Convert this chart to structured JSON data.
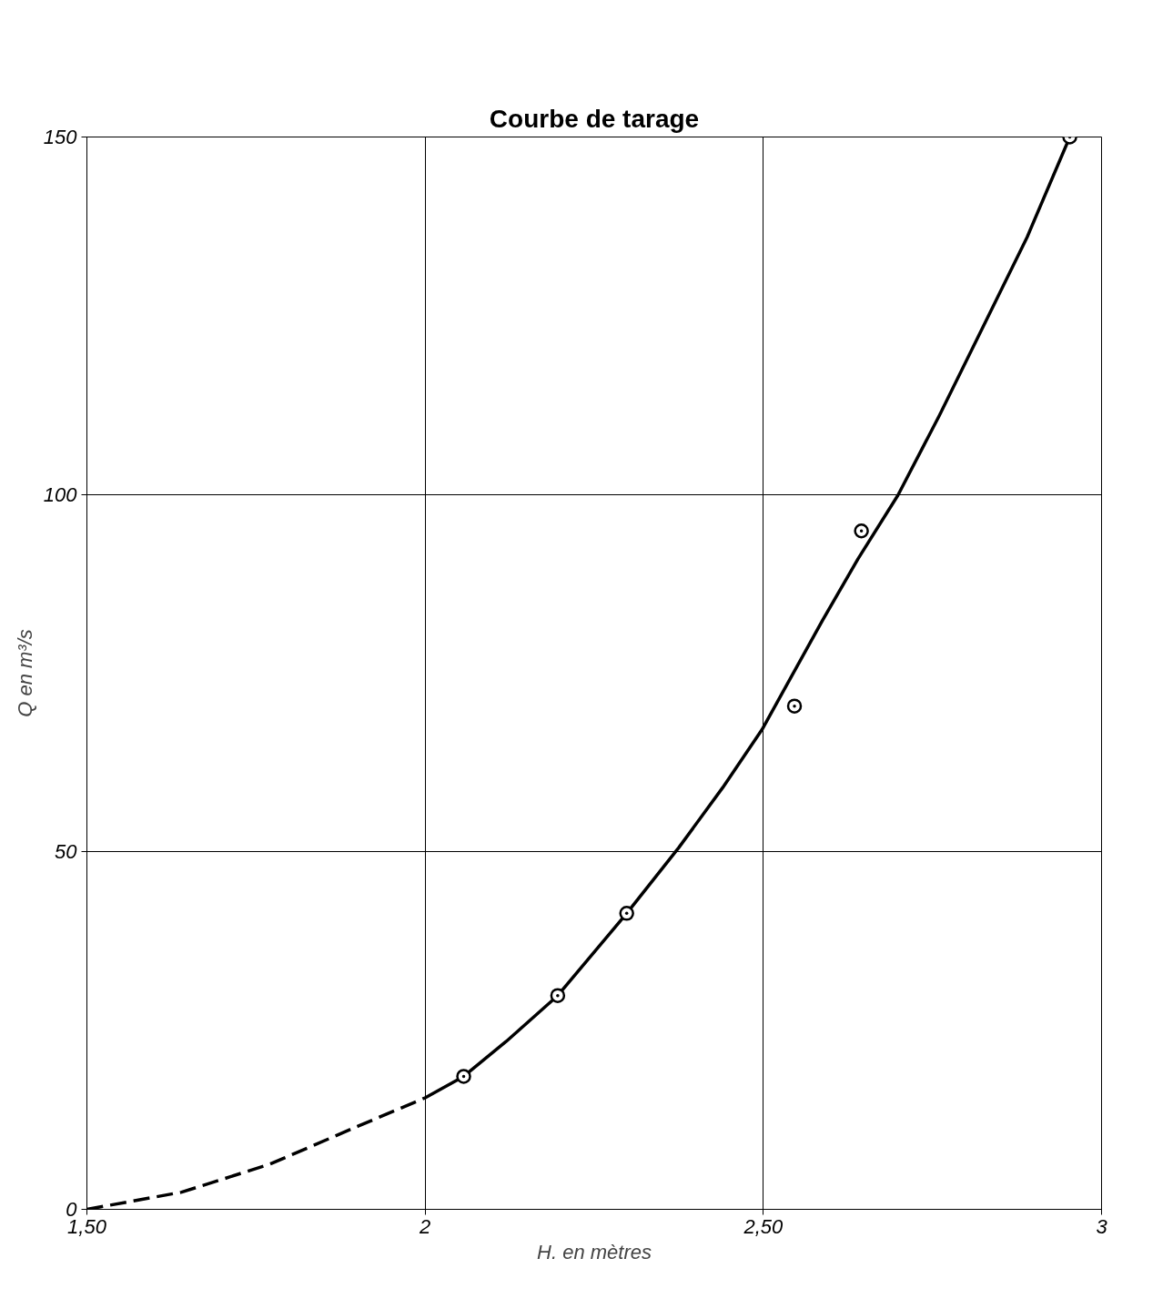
{
  "chart_data": {
    "type": "line",
    "title": "Courbe de tarage",
    "xlabel": "H. en mètres",
    "ylabel": "Q en m³/s",
    "xlim": [
      1.5,
      3
    ],
    "ylim": [
      0,
      150
    ],
    "xticks": [
      {
        "value": 1.5,
        "label": "1,50"
      },
      2,
      {
        "value": 2.5,
        "label": "2,50"
      },
      3
    ],
    "yticks": [
      0,
      50,
      100,
      150
    ],
    "grid": true,
    "series": [
      {
        "color": "#000000",
        "line_style": "dashed",
        "x": [
          1.5,
          1.64,
          1.77,
          1.9,
          2.0
        ],
        "values": [
          0,
          2.4,
          6.3,
          11.6,
          15.6
        ]
      },
      {
        "color": "#000000",
        "line_style": "solid",
        "x": [
          2.0,
          2.057,
          2.12,
          2.196,
          2.298,
          2.375,
          2.44,
          2.498,
          2.587,
          2.64,
          2.699,
          2.76,
          2.824,
          2.89,
          2.953
        ],
        "values": [
          15.6,
          18.6,
          23.5,
          29.9,
          41.4,
          50.6,
          59,
          67.1,
          82.3,
          91,
          99.9,
          111,
          123.3,
          136,
          150
        ]
      },
      {
        "type": "scatter",
        "color": "#000000",
        "marker": "circle",
        "x": [
          2.057,
          2.196,
          2.298,
          2.546,
          2.645,
          2.953
        ],
        "values": [
          18.6,
          29.9,
          41.4,
          70.4,
          94.9,
          150
        ]
      }
    ]
  }
}
